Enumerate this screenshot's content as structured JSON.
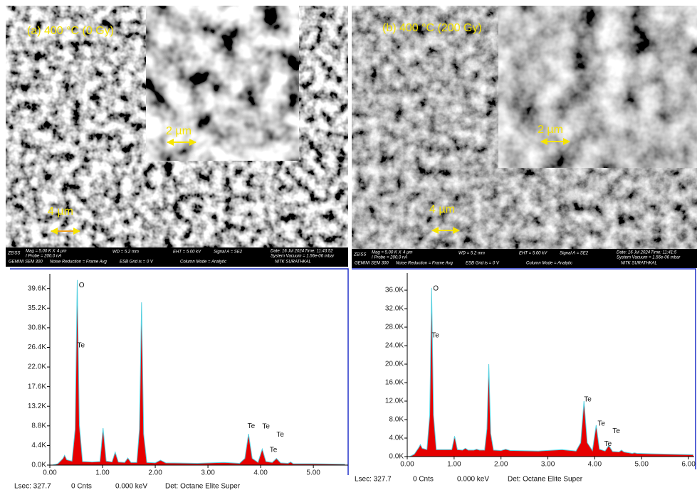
{
  "sem_panels": [
    {
      "label": "(a) 400 °C (0 Gy)",
      "inset_scale": "2 µm",
      "scale": "4 µm",
      "info_bar": [
        "ZEISS",
        "Mag = 5.00 K X",
        "4 µm",
        "I Probe = 200.0 nA",
        "GEMINI SEM 300",
        "Noise Reduction = Frame Avg",
        "WD = 5.2 mm",
        "ESB Grid is = 0 V",
        "EHT = 5.00 kV",
        "Column Mode = Analytic",
        "Signal A = SE2",
        "Date: 16 Jul 2024",
        "Time: 11:43:52",
        "System Vacuum = 1.56e-06 mbar",
        "NITK SURATHKAL"
      ]
    },
    {
      "label": "(b) 400 °C (200 Gy)",
      "inset_scale": "2 µm",
      "scale": "4 µm",
      "info_bar": [
        "ZEISS",
        "Mag = 5.00 K X",
        "4 µm",
        "I Probe = 200.0 nA",
        "GEMINI SEM 300",
        "Noise Reduction = Frame Avg",
        "WD = 5.2 mm",
        "ESB Grid is = 0 V",
        "EHT = 5.00 kV",
        "Column Mode = Analytic",
        "Signal A = SE2",
        "Date: 16 Jul 2024",
        "Time: 11:41:5",
        "System Vacuum = 1.56e-06 mbar",
        "NITK SURATHKAL"
      ]
    }
  ],
  "chart_data": [
    {
      "type": "area",
      "x": [
        0.05,
        0.15,
        0.25,
        0.28,
        0.32,
        0.42,
        0.48,
        0.52,
        0.56,
        0.62,
        0.8,
        0.95,
        1.01,
        1.07,
        1.18,
        1.24,
        1.3,
        1.42,
        1.48,
        1.54,
        1.65,
        1.7,
        1.74,
        1.78,
        1.84,
        2.0,
        2.1,
        2.2,
        2.8,
        3.3,
        3.6,
        3.7,
        3.77,
        3.84,
        3.95,
        4.03,
        4.1,
        4.22,
        4.3,
        4.38,
        4.52,
        4.57,
        4.62,
        5.0,
        5.6
      ],
      "series": [
        {
          "color": "#e60000",
          "line_color": "#55d0e0",
          "values": [
            0,
            300,
            1500,
            2200,
            1200,
            900,
            8000,
            41500,
            9000,
            800,
            700,
            800,
            8300,
            900,
            700,
            2900,
            700,
            600,
            1600,
            600,
            600,
            8000,
            36500,
            7000,
            600,
            500,
            1100,
            500,
            400,
            600,
            400,
            1500,
            7000,
            1500,
            600,
            3600,
            800,
            600,
            1500,
            500,
            400,
            700,
            300,
            300,
            200
          ]
        }
      ],
      "xlim": [
        0,
        5.66
      ],
      "ylim": [
        0,
        42900
      ],
      "xticks": [
        {
          "value": 0,
          "label": "0.00"
        },
        {
          "value": 1,
          "label": "1.00"
        },
        {
          "value": 2,
          "label": "2.00"
        },
        {
          "value": 3,
          "label": "3.00"
        },
        {
          "value": 4,
          "label": "4.00"
        },
        {
          "value": 5,
          "label": "5.00"
        }
      ],
      "yticks": [
        {
          "value": 0,
          "label": "0.0K"
        },
        {
          "value": 4400,
          "label": "4.4K"
        },
        {
          "value": 8800,
          "label": "8.8K"
        },
        {
          "value": 13200,
          "label": "13.2K"
        },
        {
          "value": 17600,
          "label": "17.6K"
        },
        {
          "value": 22000,
          "label": "22.0K"
        },
        {
          "value": 26400,
          "label": "26.4K"
        },
        {
          "value": 30800,
          "label": "30.8K"
        },
        {
          "value": 35200,
          "label": "35.2K"
        },
        {
          "value": 39600,
          "label": "39.6K"
        }
      ],
      "annotations": [
        {
          "text": "O",
          "x": 0.55,
          "y": 40300
        },
        {
          "text": "Te",
          "x": 0.52,
          "y": 26800
        },
        {
          "text": "Te",
          "x": 3.75,
          "y": 8700
        },
        {
          "text": "Te",
          "x": 4.03,
          "y": 8600
        },
        {
          "text": "Te",
          "x": 4.3,
          "y": 6800
        },
        {
          "text": "Te",
          "x": 4.17,
          "y": 3400
        }
      ],
      "footer": [
        "Lsec: 327.7",
        "0 Cnts",
        "0.000 keV",
        "Det: Octane Elite Super"
      ]
    },
    {
      "type": "area",
      "x": [
        0.05,
        0.15,
        0.25,
        0.28,
        0.32,
        0.42,
        0.48,
        0.52,
        0.56,
        0.62,
        0.8,
        0.95,
        1.01,
        1.07,
        1.18,
        1.24,
        1.3,
        1.42,
        1.48,
        1.54,
        1.65,
        1.7,
        1.74,
        1.78,
        1.84,
        2.0,
        2.1,
        2.2,
        2.8,
        3.3,
        3.6,
        3.7,
        3.77,
        3.84,
        3.95,
        4.03,
        4.1,
        4.22,
        4.3,
        4.38,
        4.52,
        4.57,
        4.62,
        4.8,
        4.85,
        4.9,
        5.2,
        6.1
      ],
      "series": [
        {
          "color": "#e60000",
          "line_color": "#55d0e0",
          "values": [
            0,
            500,
            2000,
            2600,
            1800,
            1500,
            9000,
            36500,
            9000,
            1500,
            1500,
            1500,
            4400,
            1500,
            1400,
            1800,
            1400,
            1400,
            1600,
            1400,
            1400,
            6000,
            20000,
            5000,
            1400,
            1300,
            1600,
            1300,
            1200,
            1500,
            1200,
            3000,
            12000,
            3000,
            1300,
            6800,
            1600,
            1200,
            2400,
            1100,
            1000,
            1400,
            1000,
            700,
            800,
            700,
            600,
            400
          ]
        }
      ],
      "xlim": [
        0,
        6.12
      ],
      "ylim": [
        0,
        39700
      ],
      "xticks": [
        {
          "value": 0,
          "label": "0.00"
        },
        {
          "value": 1,
          "label": "1.00"
        },
        {
          "value": 2,
          "label": "2.00"
        },
        {
          "value": 3,
          "label": "3.00"
        },
        {
          "value": 4,
          "label": "4.00"
        },
        {
          "value": 5,
          "label": "5.00"
        },
        {
          "value": 6,
          "label": "6.00"
        }
      ],
      "yticks": [
        {
          "value": 0,
          "label": "0.0K"
        },
        {
          "value": 4000,
          "label": "4.0K"
        },
        {
          "value": 8000,
          "label": "8.0K"
        },
        {
          "value": 12000,
          "label": "12.0K"
        },
        {
          "value": 16000,
          "label": "16.0K"
        },
        {
          "value": 20000,
          "label": "20.0K"
        },
        {
          "value": 24000,
          "label": "24.0K"
        },
        {
          "value": 28000,
          "label": "28.0K"
        },
        {
          "value": 32000,
          "label": "32.0K"
        },
        {
          "value": 36000,
          "label": "36.0K"
        }
      ],
      "annotations": [
        {
          "text": "O",
          "x": 0.55,
          "y": 36300
        },
        {
          "text": "Te",
          "x": 0.52,
          "y": 26200
        },
        {
          "text": "Te",
          "x": 3.77,
          "y": 12300
        },
        {
          "text": "Te",
          "x": 4.06,
          "y": 7100
        },
        {
          "text": "Te",
          "x": 4.38,
          "y": 5500
        },
        {
          "text": "Te",
          "x": 4.2,
          "y": 2700
        }
      ],
      "footer": [
        "Lsec: 327.7",
        "0 Cnts",
        "0.000 keV",
        "Det: Octane Elite Super"
      ]
    }
  ]
}
